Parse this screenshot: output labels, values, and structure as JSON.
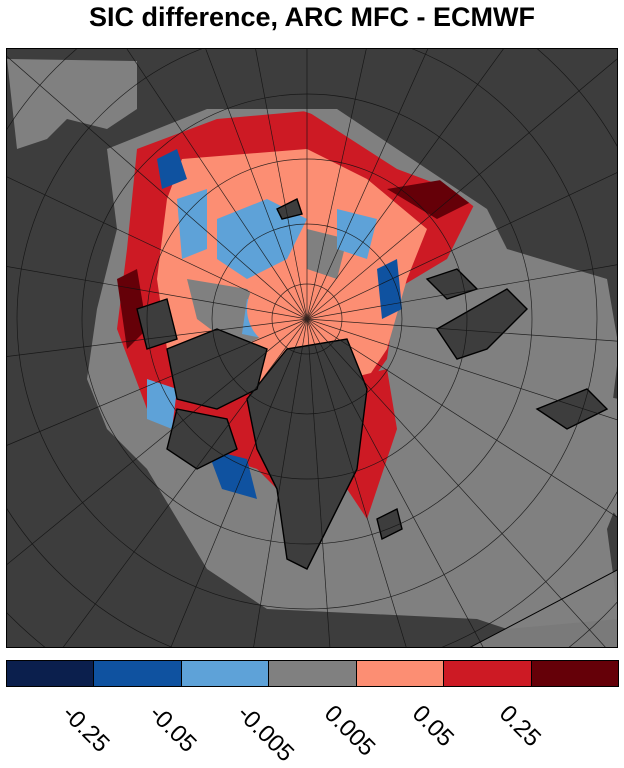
{
  "title": "SIC difference, ARC MFC - ECMWF",
  "legend": {
    "colors": [
      "#0b1f4d",
      "#0f52a0",
      "#5ea2d8",
      "#808080",
      "#fc8e73",
      "#cd1a24",
      "#650008"
    ],
    "tick_labels": [
      "-0.25",
      "-0.05",
      "-0.005",
      "0.005",
      "0.05",
      "0.25"
    ]
  },
  "map": {
    "land_color": "#3d3d3d",
    "open_water_color": "#808080",
    "outside_domain_color": "#a0a0a0",
    "coastline_color": "#000000",
    "graticule_color": "#111111"
  }
}
